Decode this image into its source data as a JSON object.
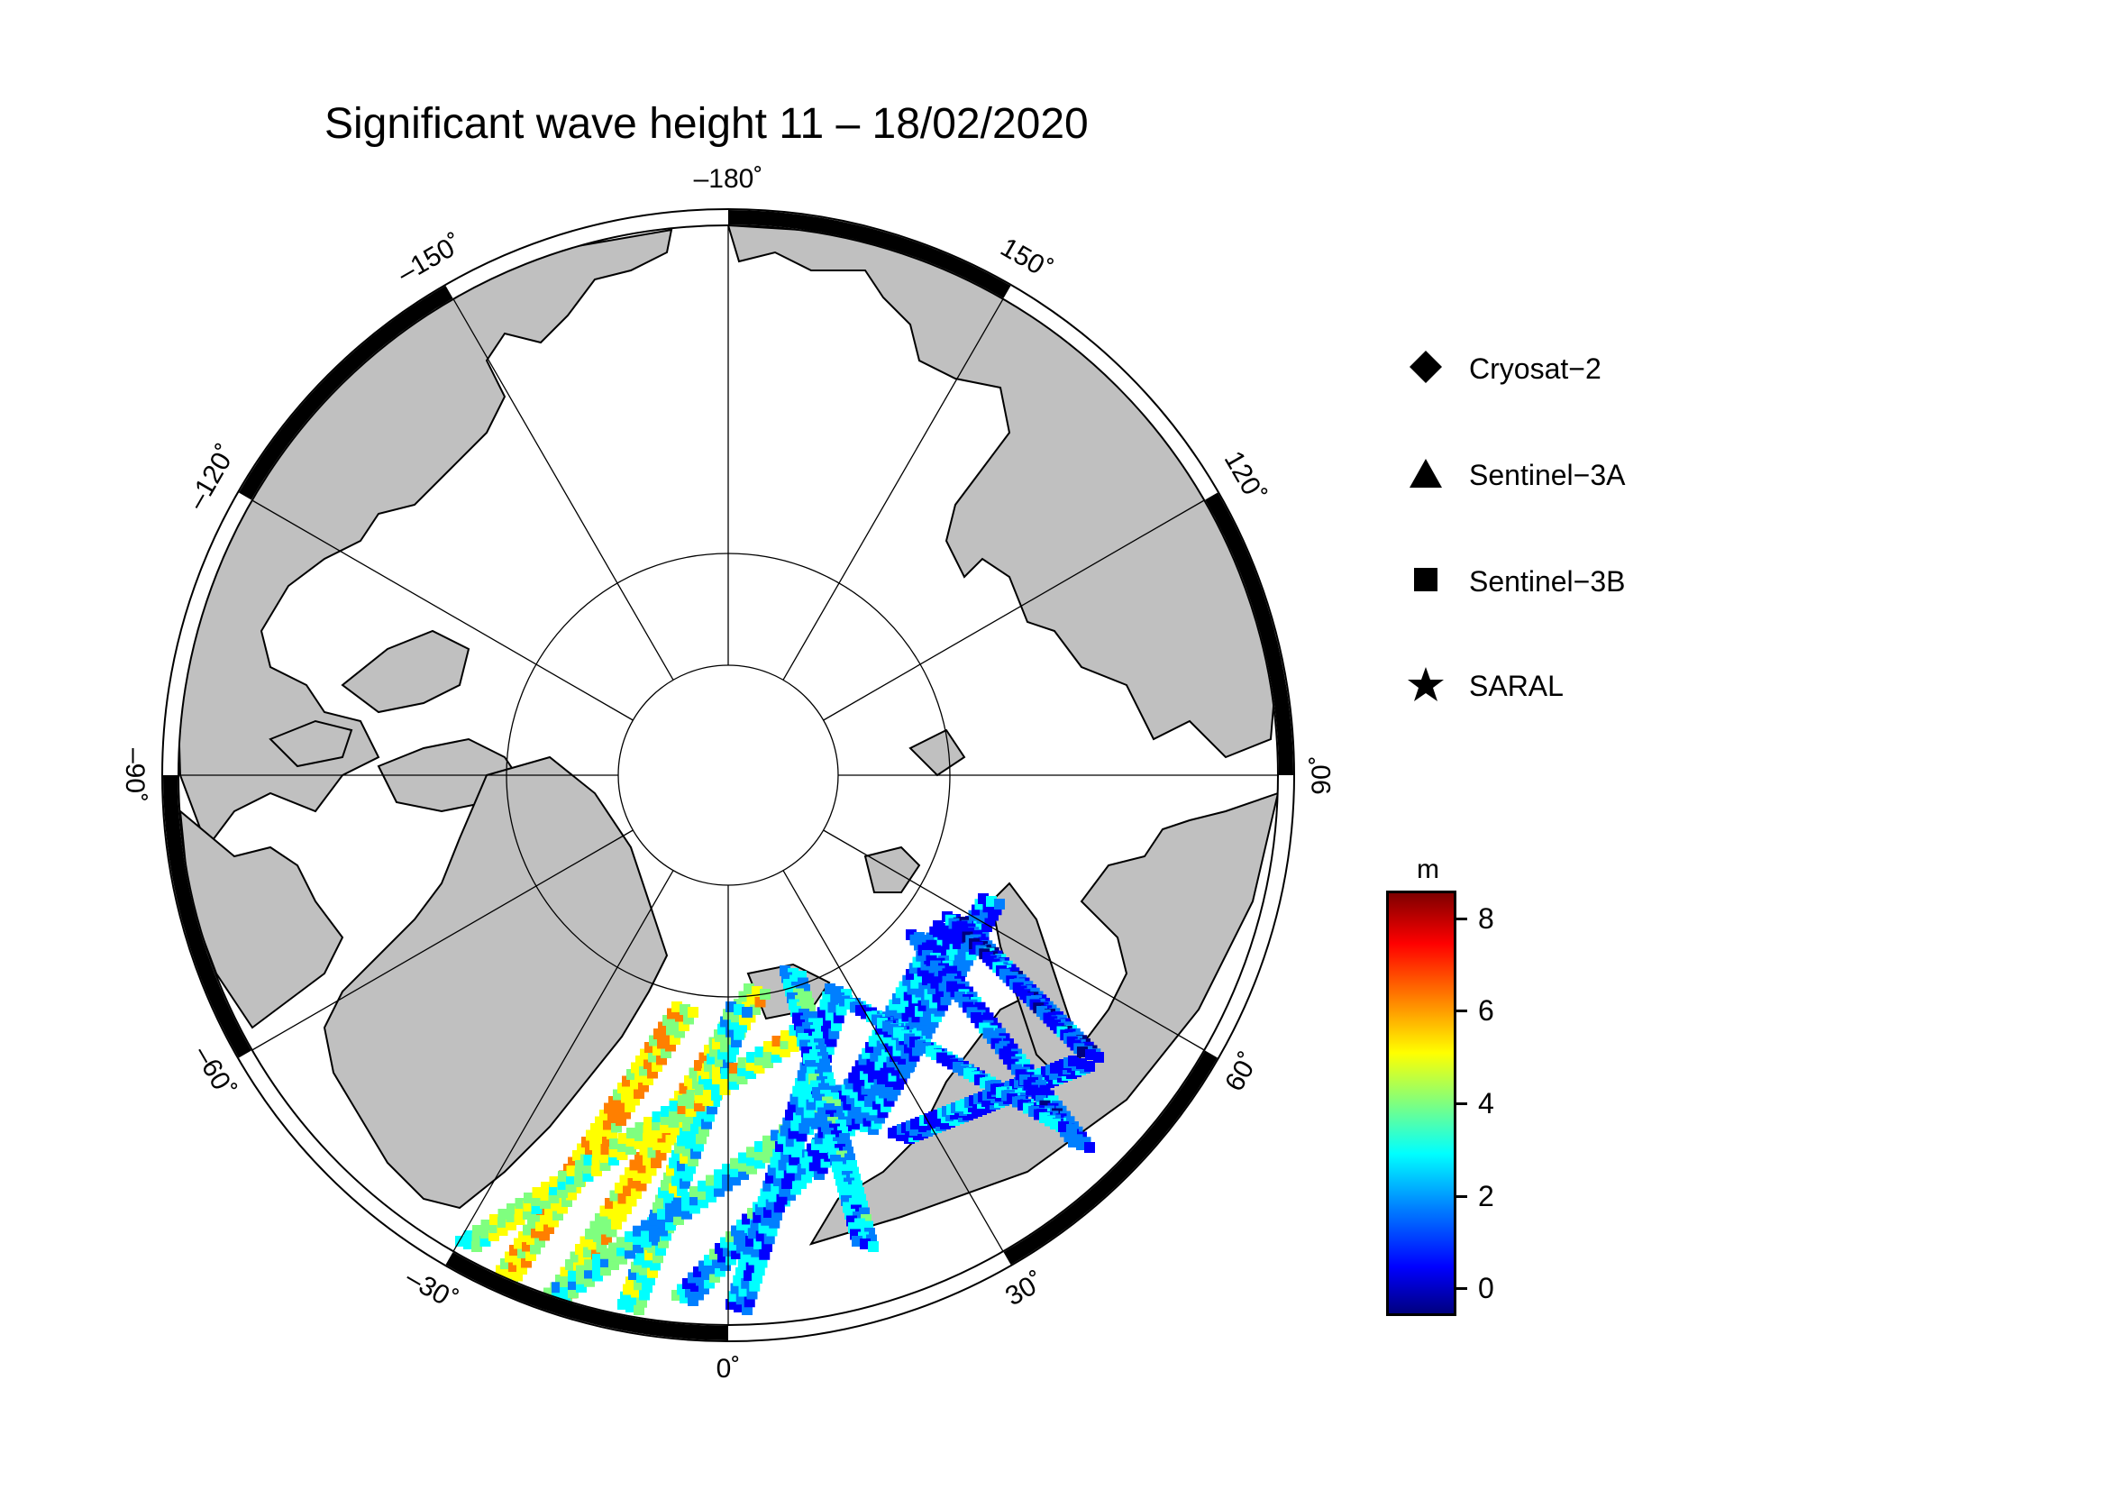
{
  "title": "Significant wave height 11 – 18/02/2020",
  "longitude_labels": [
    {
      "value": -180,
      "text": "–180˚"
    },
    {
      "value": -150,
      "text": "–150˚"
    },
    {
      "value": -120,
      "text": "–120˚"
    },
    {
      "value": -90,
      "text": "–90˚"
    },
    {
      "value": -60,
      "text": "–60˚"
    },
    {
      "value": -30,
      "text": "–30˚"
    },
    {
      "value": 0,
      "text": "0˚"
    },
    {
      "value": 30,
      "text": "30˚"
    },
    {
      "value": 60,
      "text": "60˚"
    },
    {
      "value": 90,
      "text": "90˚"
    },
    {
      "value": 120,
      "text": "120˚"
    },
    {
      "value": 150,
      "text": "150˚"
    }
  ],
  "legend": [
    {
      "symbol": "diamond-icon",
      "label": "Cryosat−2"
    },
    {
      "symbol": "triangle-icon",
      "label": "Sentinel−3A"
    },
    {
      "symbol": "square-icon",
      "label": "Sentinel−3B"
    },
    {
      "symbol": "star-icon",
      "label": "SARAL"
    }
  ],
  "colorbar": {
    "unit": "m",
    "min": -0.6,
    "max": 8.6,
    "ticks": [
      {
        "value": 0,
        "text": "0"
      },
      {
        "value": 2,
        "text": "2"
      },
      {
        "value": 4,
        "text": "4"
      },
      {
        "value": 6,
        "text": "6"
      },
      {
        "value": 8,
        "text": "8"
      }
    ]
  },
  "colors": {
    "land": "#c0c0c0",
    "ocean": "#ffffff",
    "frame_dark": "#000000"
  }
}
